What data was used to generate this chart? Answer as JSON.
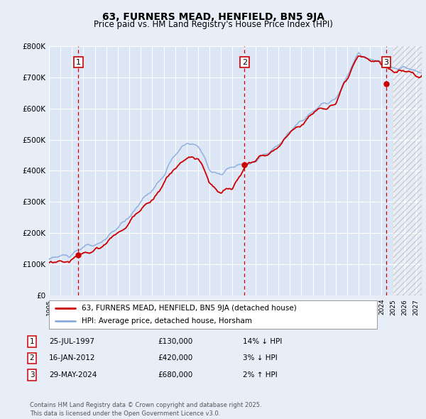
{
  "title": "63, FURNERS MEAD, HENFIELD, BN5 9JA",
  "subtitle": "Price paid vs. HM Land Registry's House Price Index (HPI)",
  "ylim": [
    0,
    800000
  ],
  "xlim_start": 1995.0,
  "xlim_end": 2027.5,
  "yticks": [
    0,
    100000,
    200000,
    300000,
    400000,
    500000,
    600000,
    700000,
    800000
  ],
  "ytick_labels": [
    "£0",
    "£100K",
    "£200K",
    "£300K",
    "£400K",
    "£500K",
    "£600K",
    "£700K",
    "£800K"
  ],
  "xticks": [
    1995,
    1996,
    1997,
    1998,
    1999,
    2000,
    2001,
    2002,
    2003,
    2004,
    2005,
    2006,
    2007,
    2008,
    2009,
    2010,
    2011,
    2012,
    2013,
    2014,
    2015,
    2016,
    2017,
    2018,
    2019,
    2020,
    2021,
    2022,
    2023,
    2024,
    2025,
    2026,
    2027
  ],
  "bg_color": "#e8eef8",
  "plot_bg_color": "#dce6f5",
  "grid_color": "#ffffff",
  "red_line_color": "#cc0000",
  "blue_line_color": "#88aadd",
  "sale1_x": 1997.56,
  "sale1_y": 130000,
  "sale2_x": 2012.04,
  "sale2_y": 420000,
  "sale3_x": 2024.41,
  "sale3_y": 680000,
  "legend_line1": "63, FURNERS MEAD, HENFIELD, BN5 9JA (detached house)",
  "legend_line2": "HPI: Average price, detached house, Horsham",
  "table_data": [
    {
      "num": "1",
      "date": "25-JUL-1997",
      "price": "£130,000",
      "hpi": "14% ↓ HPI"
    },
    {
      "num": "2",
      "date": "16-JAN-2012",
      "price": "£420,000",
      "hpi": "3% ↓ HPI"
    },
    {
      "num": "3",
      "date": "29-MAY-2024",
      "price": "£680,000",
      "hpi": "2% ↑ HPI"
    }
  ],
  "footer": "Contains HM Land Registry data © Crown copyright and database right 2025.\nThis data is licensed under the Open Government Licence v3.0.",
  "hatch_start": 2025.0
}
